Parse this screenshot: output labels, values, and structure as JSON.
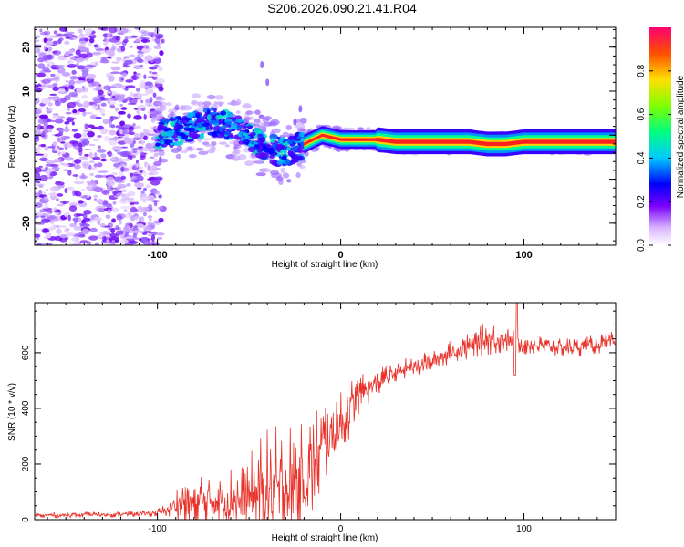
{
  "title": "S206.2026.090.21.41.R04",
  "chart_data": [
    {
      "type": "heatmap",
      "name": "spectrogram",
      "xlabel": "Height of straight line (km)",
      "ylabel": "Frequency (Hz)",
      "xlim": [
        -167,
        150
      ],
      "ylim": [
        -25,
        24.5
      ],
      "xticks": [
        -100,
        0,
        100
      ],
      "yticks": [
        -20,
        -10,
        0,
        10,
        20
      ],
      "xtick_labels": [
        "-100",
        "0",
        "100"
      ],
      "ytick_labels": [
        "-20",
        "-10",
        "0",
        "10",
        "20"
      ],
      "colorbar": {
        "label": "Normalized spectral amplitude",
        "range": [
          0,
          1
        ],
        "ticks": [
          0.0,
          0.2,
          0.4,
          0.6,
          0.8
        ],
        "tick_labels": [
          "0.0",
          "0.2",
          "0.4",
          "0.6",
          "0.8"
        ]
      },
      "ridge": {
        "description_points_x": [
          -100,
          -90,
          -80,
          -70,
          -60,
          -50,
          -40,
          -30,
          -20,
          -10,
          0,
          10,
          20,
          30,
          50,
          70,
          80,
          90,
          100,
          110,
          120,
          130,
          150
        ],
        "frequency_hz": [
          0,
          1,
          2,
          3,
          2,
          0,
          -3,
          -4,
          -2,
          0,
          -1,
          -1,
          -1,
          -1.5,
          -1.5,
          -1.5,
          -2,
          -2,
          -1.5,
          -1.5,
          -1.5,
          -1.5,
          -1.5
        ]
      }
    },
    {
      "type": "line",
      "name": "snr",
      "xlabel": "Height of straight line (km)",
      "ylabel": "SNR (10 * v/v)",
      "xlim": [
        -167,
        150
      ],
      "ylim": [
        0,
        780
      ],
      "xticks": [
        -100,
        0,
        100
      ],
      "yticks": [
        0,
        200,
        400,
        600
      ],
      "xtick_labels": [
        "-100",
        "0",
        "100"
      ],
      "ytick_labels": [
        "0",
        "200",
        "400",
        "600"
      ],
      "color": "#e8322a",
      "envelope": {
        "x": [
          -167,
          -110,
          -100,
          -95,
          -90,
          -85,
          -80,
          -70,
          -60,
          -55,
          -50,
          -45,
          -40,
          -35,
          -30,
          -25,
          -20,
          -15,
          -10,
          -5,
          0,
          5,
          10,
          15,
          20,
          25,
          30,
          40,
          50,
          60,
          70,
          75,
          80,
          85,
          90,
          95,
          100,
          110,
          120,
          130,
          140,
          150
        ],
        "base": [
          15,
          20,
          25,
          35,
          50,
          70,
          60,
          70,
          70,
          60,
          80,
          100,
          110,
          100,
          110,
          110,
          150,
          200,
          260,
          310,
          340,
          400,
          440,
          470,
          490,
          510,
          530,
          550,
          570,
          600,
          620,
          640,
          650,
          650,
          650,
          640,
          630,
          625,
          620,
          620,
          630,
          640
        ],
        "amp": [
          10,
          10,
          15,
          25,
          60,
          120,
          140,
          110,
          130,
          130,
          150,
          200,
          220,
          240,
          250,
          260,
          220,
          200,
          180,
          150,
          120,
          110,
          80,
          60,
          50,
          45,
          40,
          40,
          40,
          45,
          50,
          60,
          60,
          60,
          50,
          40,
          40,
          35,
          35,
          35,
          35,
          40
        ]
      }
    }
  ]
}
